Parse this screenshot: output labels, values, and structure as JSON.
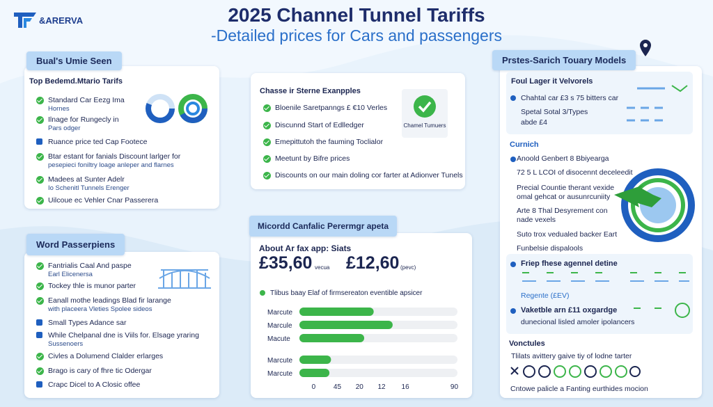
{
  "header": {
    "logo": "&ARERVA",
    "title": "2025 Channel Tunnel Tariffs",
    "subtitle": "-Detailed prices for Cars and passengers"
  },
  "left_top": {
    "tab": "Bual's Umie Seen",
    "heading": "Top Bedemd.Mtario Tarifs",
    "items": [
      {
        "icon": "check",
        "text": "Standard Car Eezg  Ima",
        "sub": "Hornes"
      },
      {
        "icon": "check",
        "text": "Ilnage for Rungecly in",
        "sub": "Pars odger"
      },
      {
        "icon": "square",
        "text": "Ruance price ted Cap Footece"
      },
      {
        "icon": "check",
        "text": "Btar estant for fanials Discount larlger for",
        "sub": "pesepieci foniltry loage anleper and flarnes"
      },
      {
        "icon": "check",
        "text": "Madees at Sunter Adelr",
        "sub": "Io Schenitl Tunnels Erenger"
      },
      {
        "icon": "check",
        "text": "Uilcoue ec Vehler Cnar Passerera"
      }
    ]
  },
  "left_bottom": {
    "tab": "Word Passerpiens",
    "items": [
      {
        "icon": "check",
        "text": "Fantrialis Caal And paspe",
        "sub": "Earl Elicenersa"
      },
      {
        "icon": "check",
        "text": "Tockey thle is munor parter"
      },
      {
        "icon": "check",
        "text": "Eanall mothe leadings Blad fir larange",
        "sub": "with placeera Vleties Spolee sideos"
      },
      {
        "icon": "square",
        "text": "Small Types Adance sar"
      },
      {
        "icon": "square",
        "text": "While Chelpanal dne is Viils for. Elsage yraring",
        "sub": "Sussenoers"
      },
      {
        "icon": "check",
        "text": "Civles a Dolumend Clalder erlarges"
      },
      {
        "icon": "check",
        "text": "Brago is cary of fhre tic Odergar"
      },
      {
        "icon": "square",
        "text": "Crapc Dicel to A Closic offee"
      }
    ]
  },
  "center_top": {
    "heading": "Chasse ir Sterne Exanpples",
    "badge": "Chamel Tumuers",
    "items": [
      {
        "icon": "check",
        "text": "Bloenile Saretpanngs £ €10 Verles"
      },
      {
        "icon": "check",
        "text": "Discunnd Start of Edlledger"
      },
      {
        "icon": "check",
        "text": "Emepittutoh the fauming Toclialor"
      },
      {
        "icon": "check",
        "text": "Meetunt by Bifre prices"
      },
      {
        "icon": "check",
        "text": "Discounts on our main doling cor farter at Adionver Tunels"
      }
    ]
  },
  "center_bottom": {
    "tab": "Micordd Canfalic Perermgr apeta",
    "heading": "About Ar fax app: Siats",
    "prices": [
      {
        "amount": "£35,60",
        "unit": "vecua"
      },
      {
        "amount": "£12,60",
        "unit": "(pevc)"
      }
    ]
  },
  "chart_data": {
    "type": "bar",
    "orientation": "horizontal",
    "categories": [
      "Marcute",
      "Marcule",
      "Macute",
      "Marcute",
      "Marcute"
    ],
    "series": [
      {
        "name": "Tlibus baay Elaf of firmsereaton eventible apsicer",
        "color": "#3cb54a",
        "values": [
          47,
          59,
          41,
          20,
          19
        ]
      }
    ],
    "xlim": [
      0,
      100
    ],
    "xticks": [
      {
        "value": 9,
        "label": "0"
      },
      {
        "value": 24,
        "label": "45"
      },
      {
        "value": 38,
        "label": "20"
      },
      {
        "value": 52,
        "label": "12"
      },
      {
        "value": 67,
        "label": "16"
      },
      {
        "value": 98,
        "label": "90"
      }
    ]
  },
  "right": {
    "tab": "Prstes-Sarich Touary Models",
    "box1": {
      "title": "Foul Lager it Velvorels",
      "line1": "Chahtal car £3 s 75 bitters car",
      "line2": "Spetal Sotal 3/Types",
      "line3": "abde £4"
    },
    "section": "Curnich",
    "lines": [
      "Anoold Genbert  8  Bbiyearga",
      "72 5 L LCOI of disocennt deceleedit",
      "Precial Countie therant vexide",
      "omal gehcat or ausunrcuniity",
      "Arte 8 Thal Desyrement con",
      "nade vexels",
      "Suto trox vedualed backer Eart",
      "Funbelsie dispalools"
    ],
    "box2": {
      "title1": "Friep fhese agennel detine",
      "regente": "Regente (£EV)",
      "title2": "Vaketble arn £11 oxgardge",
      "line2": "dunecional lisled amoler ipolancers"
    },
    "footer_title": "Vonctules",
    "footer1": "Tlilats avittery gaive tiy of lodne tarter",
    "footer2": "Cntowe palicle a Fanting eurthides mocion"
  }
}
